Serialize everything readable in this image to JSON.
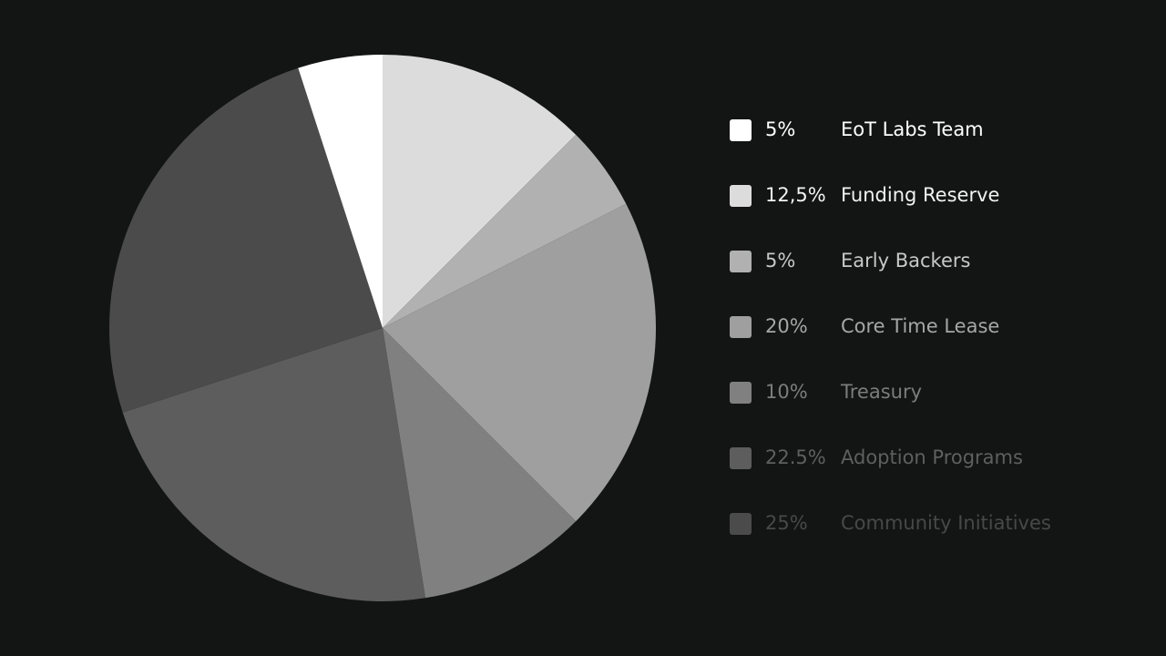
{
  "chart_data": {
    "type": "pie",
    "start_angle_deg": 0,
    "direction": "clockwise",
    "slices": [
      {
        "label": "Funding Reserve",
        "percent_label": "12,5%",
        "value": 12.5,
        "color": "#dcdcdc"
      },
      {
        "label": "Early Backers",
        "percent_label": "5%",
        "value": 5,
        "color": "#b1b1b1"
      },
      {
        "label": "Core Time Lease",
        "percent_label": "20%",
        "value": 20,
        "color": "#9f9f9f"
      },
      {
        "label": "Treasury",
        "percent_label": "10%",
        "value": 10,
        "color": "#808080"
      },
      {
        "label": "Adoption Programs",
        "percent_label": "22.5%",
        "value": 22.5,
        "color": "#5d5d5d"
      },
      {
        "label": "Community Initiatives",
        "percent_label": "25%",
        "value": 25,
        "color": "#4b4b4b"
      },
      {
        "label": "EoT Labs Team",
        "percent_label": "5%",
        "value": 5,
        "color": "#ffffff"
      }
    ],
    "legend_position": "right"
  },
  "legend": {
    "items": [
      {
        "percent": "5%",
        "label": "EoT Labs Team",
        "swatch_color": "#ffffff",
        "text_color": "#ffffff"
      },
      {
        "percent": "12,5%",
        "label": "Funding Reserve",
        "swatch_color": "#dcdcdc",
        "text_color": "#f2f2f2"
      },
      {
        "percent": "5%",
        "label": "Early Backers",
        "swatch_color": "#b1b1b1",
        "text_color": "#c8c8c8"
      },
      {
        "percent": "20%",
        "label": "Core Time Lease",
        "swatch_color": "#9f9f9f",
        "text_color": "#a6a6a6"
      },
      {
        "percent": "10%",
        "label": "Treasury",
        "swatch_color": "#808080",
        "text_color": "#7c7c7c"
      },
      {
        "percent": "22.5%",
        "label": "Adoption Programs",
        "swatch_color": "#5d5d5d",
        "text_color": "#5f5f5f"
      },
      {
        "percent": "25%",
        "label": "Community Initiatives",
        "swatch_color": "#4b4b4b",
        "text_color": "#484848"
      }
    ]
  },
  "colors": {
    "background": "#131414"
  }
}
